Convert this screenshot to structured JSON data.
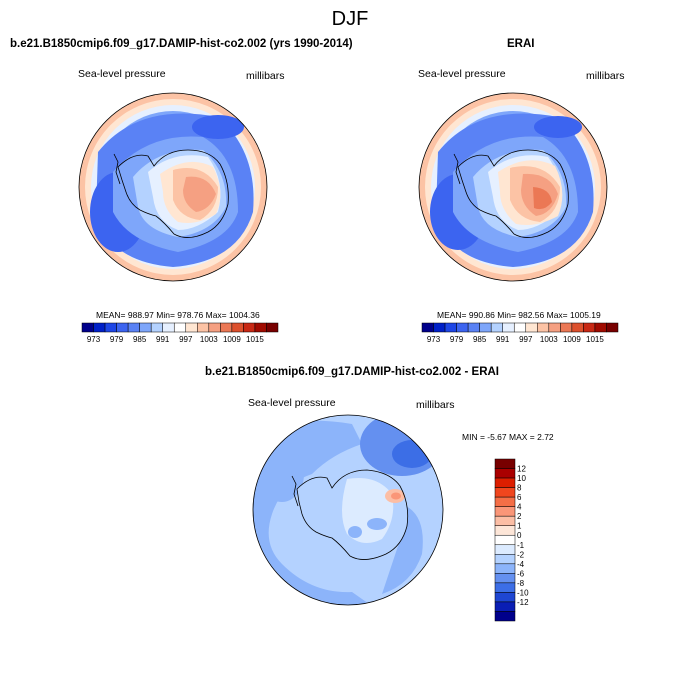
{
  "season": "DJF",
  "panels": [
    {
      "title": "b.e21.B1850cmip6.f09_g17.DAMIP-hist-co2.002 (yrs 1990-2014)",
      "variable": "Sea-level pressure",
      "units": "millibars",
      "stats": "MEAN= 988.97   Min= 978.76  Max= 1004.36"
    },
    {
      "title": "ERAI",
      "variable": "Sea-level pressure",
      "units": "millibars",
      "stats": "MEAN= 990.86   Min= 982.56  Max= 1005.19"
    },
    {
      "title": "b.e21.B1850cmip6.f09_g17.DAMIP-hist-co2.002 - ERAI",
      "variable": "Sea-level pressure",
      "units": "millibars",
      "stats": "MIN =  -5.67 MAX =   2.72"
    }
  ],
  "colorbar_main": {
    "colors": [
      "#00008b",
      "#0020c8",
      "#1e46e6",
      "#3c64f0",
      "#5a82f5",
      "#7ea6fa",
      "#b4d2ff",
      "#e6f0ff",
      "#ffffff",
      "#ffe6d2",
      "#fcc3a5",
      "#f5a082",
      "#eb7855",
      "#dc502d",
      "#c82814",
      "#a00a00",
      "#780000"
    ],
    "labels": [
      "973",
      "979",
      "985",
      "991",
      "997",
      "1003",
      "1009",
      "1015"
    ]
  },
  "colorbar_diff": {
    "colors": [
      "#780000",
      "#aa0000",
      "#dc1e00",
      "#f0461e",
      "#f56e46",
      "#fa9678",
      "#fcbea5",
      "#fde6d8",
      "#ffffff",
      "#dcebff",
      "#b4d2ff",
      "#8cb4fa",
      "#6490f0",
      "#3c6ee6",
      "#1e46d2",
      "#0a1eb4",
      "#00008b"
    ],
    "labels": [
      "12",
      "10",
      "8",
      "6",
      "4",
      "2",
      "1",
      "0",
      "-1",
      "-2",
      "-4",
      "-6",
      "-8",
      "-10",
      "-12"
    ]
  },
  "map_colors": {
    "deep_blue": "#3c64f0",
    "mid_blue": "#5a82f5",
    "light_blue": "#7ea6fa",
    "pale_blue": "#b4d2ff",
    "very_pale": "#e6f0ff",
    "peach": "#ffe6d2",
    "salmon": "#fcc3a5",
    "orange": "#f5a082",
    "red_orange": "#eb7855"
  }
}
